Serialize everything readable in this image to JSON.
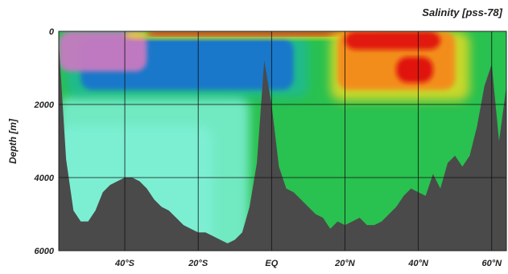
{
  "chart_data": {
    "type": "heatmap",
    "title": "Salinity [pss-78]",
    "xlabel": "",
    "ylabel": "Depth [m]",
    "x_axis": {
      "unit": "latitude",
      "range": [
        -58,
        64
      ],
      "ticks": [
        {
          "value": -40,
          "label": "40°S"
        },
        {
          "value": -20,
          "label": "20°S"
        },
        {
          "value": 0,
          "label": "EQ"
        },
        {
          "value": 20,
          "label": "20°N"
        },
        {
          "value": 40,
          "label": "40°N"
        },
        {
          "value": 60,
          "label": "60°N"
        }
      ]
    },
    "y_axis": {
      "unit": "m",
      "inverted": true,
      "range": [
        0,
        6000
      ],
      "ticks": [
        {
          "value": 0,
          "label": "0"
        },
        {
          "value": 2000,
          "label": "2000"
        },
        {
          "value": 4000,
          "label": "4000"
        },
        {
          "value": 6000,
          "label": "6000"
        }
      ]
    },
    "grid": true,
    "legend": "none",
    "colors": {
      "seafloor": "#4a4a4a",
      "background": "#29c14f",
      "deep_south": "#7ef0d6",
      "intermediate_low": "#1a2fdc",
      "low_salinity": "#c77ac0",
      "high_salinity": "#e01010",
      "orange": "#f58a1c",
      "yellow": "#f2dc24",
      "grid": "#111111"
    },
    "bathymetry": {
      "lat": [
        -58,
        -56,
        -54,
        -52,
        -50,
        -48,
        -46,
        -44,
        -42,
        -40,
        -38,
        -36,
        -34,
        -32,
        -30,
        -28,
        -26,
        -24,
        -22,
        -20,
        -18,
        -16,
        -14,
        -12,
        -10,
        -8,
        -6,
        -4,
        -2,
        0,
        2,
        4,
        6,
        8,
        10,
        12,
        14,
        16,
        18,
        20,
        22,
        24,
        26,
        28,
        30,
        32,
        34,
        36,
        38,
        40,
        42,
        44,
        46,
        48,
        50,
        52,
        54,
        56,
        58,
        60,
        62,
        64
      ],
      "depth": [
        300,
        3500,
        4900,
        5200,
        5200,
        4900,
        4400,
        4200,
        4100,
        4000,
        4000,
        4100,
        4300,
        4600,
        4800,
        4900,
        5100,
        5300,
        5400,
        5500,
        5500,
        5600,
        5700,
        5800,
        5700,
        5500,
        4800,
        3600,
        800,
        2000,
        3700,
        4300,
        4400,
        4600,
        4800,
        5000,
        5100,
        5400,
        5200,
        5300,
        5200,
        5100,
        5300,
        5300,
        5200,
        5000,
        4800,
        4500,
        4300,
        4400,
        4500,
        3900,
        4300,
        3600,
        3400,
        3700,
        3400,
        2600,
        1500,
        900,
        3000,
        1500
      ]
    },
    "salinity_regions": [
      {
        "name": "low-salinity surface (south)",
        "lat": [
          -58,
          -34
        ],
        "depth": [
          0,
          1200
        ]
      },
      {
        "name": "intermediate water",
        "lat": [
          -52,
          6
        ],
        "depth": [
          0,
          1700
        ]
      },
      {
        "name": "high-salinity surface",
        "lat": [
          -40,
          30
        ],
        "depth": [
          0,
          200
        ]
      },
      {
        "name": "high-salinity lens (north)",
        "lat": [
          18,
          52
        ],
        "depth": [
          0,
          1800
        ]
      },
      {
        "name": "high-salinity core",
        "lat": [
          34,
          44
        ],
        "depth": [
          700,
          1400
        ]
      },
      {
        "name": "deep water (south)",
        "lat": [
          -58,
          -6
        ],
        "depth": [
          1800,
          6000
        ]
      }
    ]
  }
}
